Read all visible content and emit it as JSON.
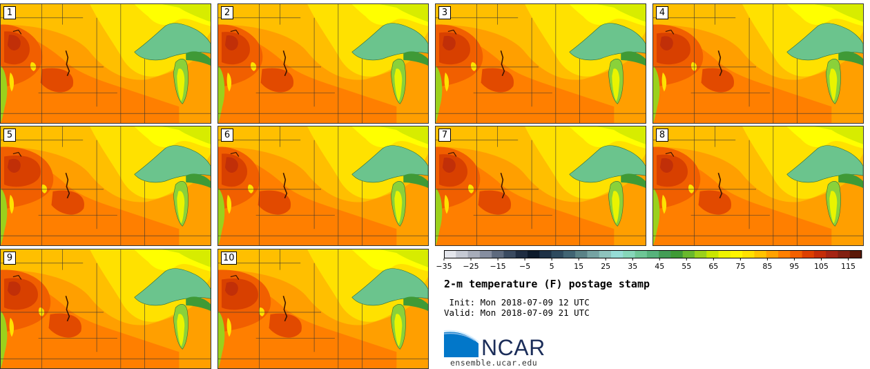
{
  "figure": {
    "title": "2-m temperature (F) postage stamp",
    "init_text": " Init: Mon 2018-07-09 12 UTC",
    "valid_text": "Valid: Mon 2018-07-09 21 UTC",
    "logo": {
      "name": "NCAR"
    },
    "site": "ensemble.ucar.edu"
  },
  "members": [
    "1",
    "2",
    "3",
    "4",
    "5",
    "6",
    "7",
    "8",
    "9",
    "10"
  ],
  "colorbar": {
    "units": "F",
    "min": -35,
    "max": 120,
    "step": 5,
    "tick_labels": [
      "−35",
      "−25",
      "−15",
      "−5",
      "5",
      "15",
      "25",
      "35",
      "45",
      "55",
      "65",
      "75",
      "85",
      "95",
      "105",
      "115"
    ],
    "colors": [
      "#e4e6ec",
      "#c5c9d3",
      "#a7acb9",
      "#868ea0",
      "#5e6a7e",
      "#3a4a60",
      "#1f2d42",
      "#0d1a2b",
      "#1e3146",
      "#2e4a5e",
      "#416473",
      "#5a8287",
      "#76a3a3",
      "#8ec3bd",
      "#96dcd6",
      "#86d6b9",
      "#6ec696",
      "#57b27c",
      "#449d56",
      "#3f9a36",
      "#69b82d",
      "#9bd11c",
      "#c9e600",
      "#eff400",
      "#fff600",
      "#ffe100",
      "#ffc300",
      "#ffa200",
      "#ff8000",
      "#f36100",
      "#dd4000",
      "#c42d09",
      "#a52414",
      "#822012",
      "#5a1808"
    ]
  }
}
